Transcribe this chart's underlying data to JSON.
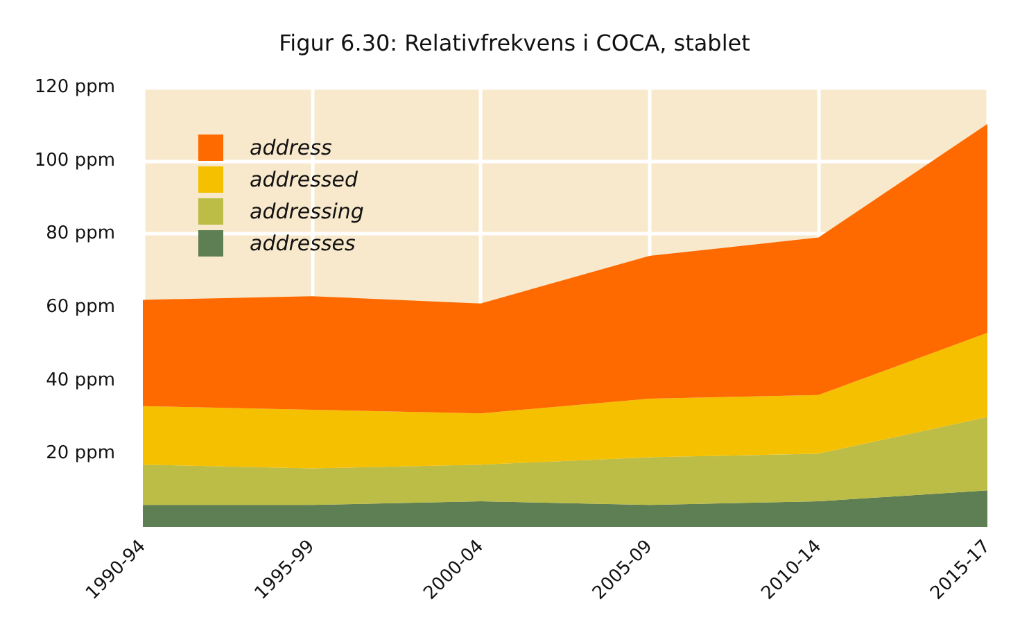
{
  "chart_data": {
    "type": "area",
    "title": "Figur 6.30: Relativfrekvens i COCA, stablet",
    "stacked": true,
    "categories": [
      "1990-94",
      "1995-99",
      "2000-04",
      "2005-09",
      "2010-14",
      "2015-17"
    ],
    "series": [
      {
        "name": "addresses",
        "color": "#5e7f53",
        "values": [
          6,
          6,
          7,
          6,
          7,
          10
        ]
      },
      {
        "name": "addressing",
        "color": "#bbbd46",
        "values": [
          11,
          10,
          10,
          13,
          13,
          20
        ]
      },
      {
        "name": "addressed",
        "color": "#f5c000",
        "values": [
          16,
          16,
          14,
          16,
          16,
          23
        ]
      },
      {
        "name": "address",
        "color": "#ff6a00",
        "values": [
          29,
          31,
          30,
          39,
          43,
          57
        ]
      }
    ],
    "ylim": [
      0,
      120
    ],
    "yticks": [
      {
        "value": 20,
        "label": "20 ppm"
      },
      {
        "value": 40,
        "label": "40 ppm"
      },
      {
        "value": 60,
        "label": "60 ppm"
      },
      {
        "value": 80,
        "label": "80 ppm"
      },
      {
        "value": 100,
        "label": "100 ppm"
      },
      {
        "value": 120,
        "label": "120 ppm"
      }
    ],
    "grid": true,
    "legend": "top left"
  }
}
